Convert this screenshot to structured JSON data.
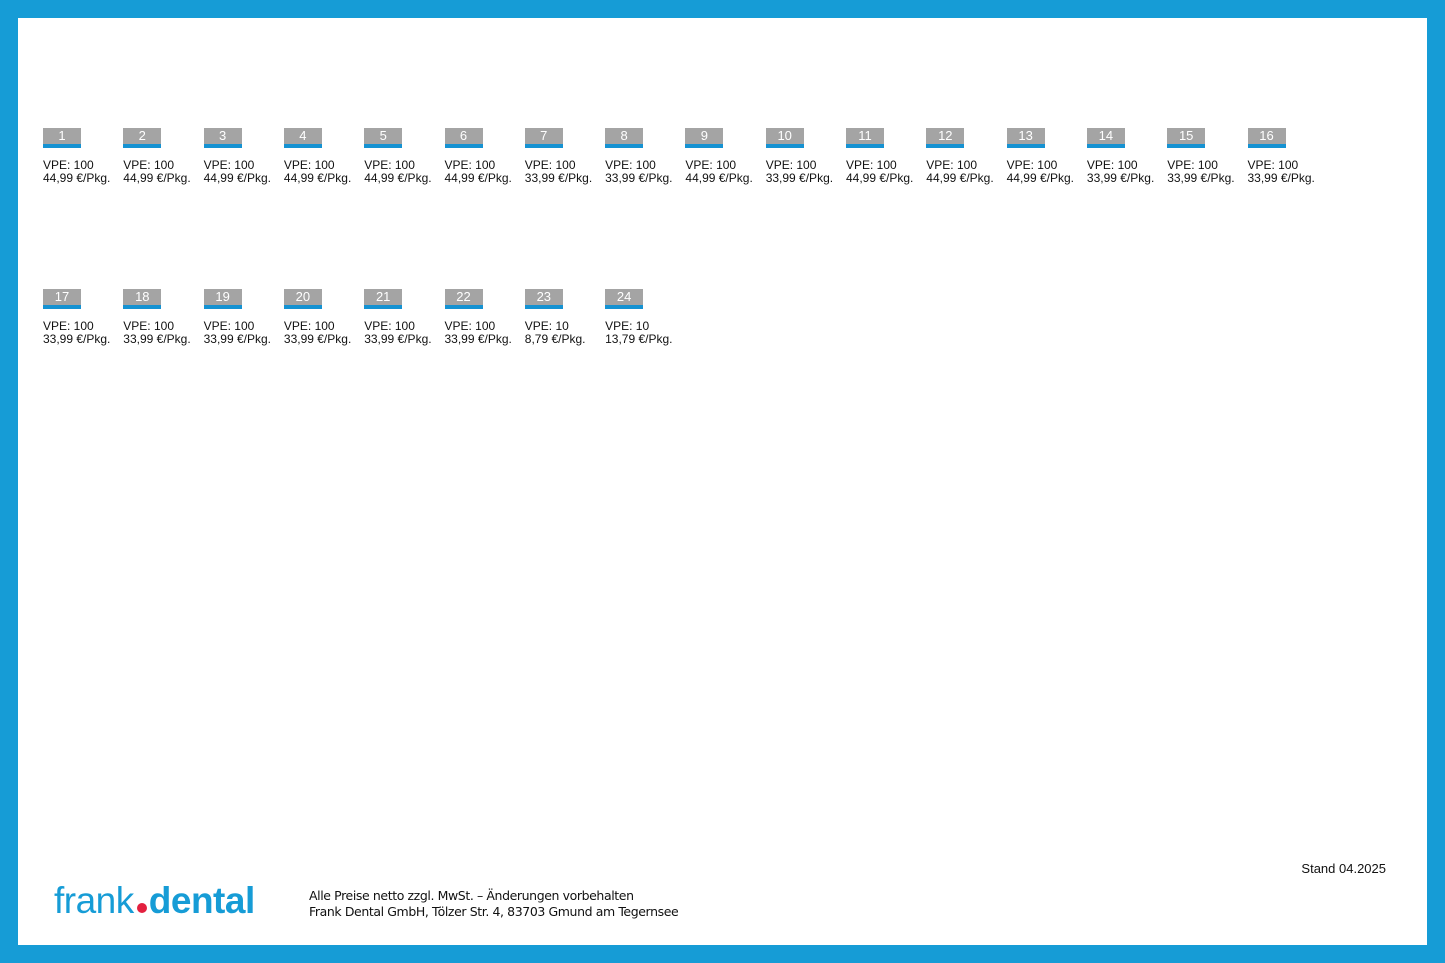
{
  "items": [
    {
      "number": "1",
      "vpe": "VPE: 100",
      "price": "44,99 €/Pkg."
    },
    {
      "number": "2",
      "vpe": "VPE: 100",
      "price": "44,99 €/Pkg."
    },
    {
      "number": "3",
      "vpe": "VPE: 100",
      "price": "44,99 €/Pkg."
    },
    {
      "number": "4",
      "vpe": "VPE: 100",
      "price": "44,99 €/Pkg."
    },
    {
      "number": "5",
      "vpe": "VPE: 100",
      "price": "44,99 €/Pkg."
    },
    {
      "number": "6",
      "vpe": "VPE: 100",
      "price": "44,99 €/Pkg."
    },
    {
      "number": "7",
      "vpe": "VPE: 100",
      "price": "33,99 €/Pkg."
    },
    {
      "number": "8",
      "vpe": "VPE: 100",
      "price": "33,99 €/Pkg."
    },
    {
      "number": "9",
      "vpe": "VPE: 100",
      "price": "44,99 €/Pkg."
    },
    {
      "number": "10",
      "vpe": "VPE: 100",
      "price": "33,99 €/Pkg."
    },
    {
      "number": "11",
      "vpe": "VPE: 100",
      "price": "44,99 €/Pkg."
    },
    {
      "number": "12",
      "vpe": "VPE: 100",
      "price": "44,99 €/Pkg."
    },
    {
      "number": "13",
      "vpe": "VPE: 100",
      "price": "44,99 €/Pkg."
    },
    {
      "number": "14",
      "vpe": "VPE: 100",
      "price": "33,99 €/Pkg."
    },
    {
      "number": "15",
      "vpe": "VPE: 100",
      "price": "33,99 €/Pkg."
    },
    {
      "number": "16",
      "vpe": "VPE: 100",
      "price": "33,99 €/Pkg."
    },
    {
      "number": "17",
      "vpe": "VPE: 100",
      "price": "33,99 €/Pkg."
    },
    {
      "number": "18",
      "vpe": "VPE: 100",
      "price": "33,99 €/Pkg."
    },
    {
      "number": "19",
      "vpe": "VPE: 100",
      "price": "33,99 €/Pkg."
    },
    {
      "number": "20",
      "vpe": "VPE: 100",
      "price": "33,99 €/Pkg."
    },
    {
      "number": "21",
      "vpe": "VPE: 100",
      "price": "33,99 €/Pkg."
    },
    {
      "number": "22",
      "vpe": "VPE: 100",
      "price": "33,99 €/Pkg."
    },
    {
      "number": "23",
      "vpe": "VPE: 10",
      "price": "8,79 €/Pkg."
    },
    {
      "number": "24",
      "vpe": "VPE: 10",
      "price": "13,79 €/Pkg."
    }
  ],
  "stand": "Stand 04.2025",
  "logo": {
    "part1": "frank",
    "part2": "dental"
  },
  "footer": {
    "line1": "Alle Preise netto zzgl. MwSt. – Änderungen vorbehalten",
    "line2": "Frank Dental GmbH, Tölzer Str. 4, 83703 Gmund am Tegernsee"
  },
  "colors": {
    "frame": "#169cd6",
    "tag": "#a4a4a4",
    "tag_bar": "#1592d2",
    "logo_dot": "#e3203f"
  }
}
